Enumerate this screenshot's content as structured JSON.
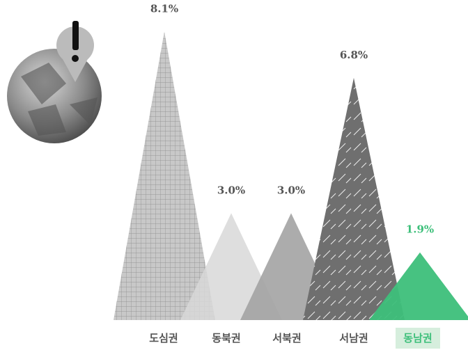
{
  "chart_data": {
    "type": "triangle-bar",
    "categories": [
      "도심권",
      "동북권",
      "서북권",
      "서남권",
      "동남권"
    ],
    "values": [
      8.1,
      3.0,
      3.0,
      6.8,
      1.9
    ],
    "value_labels": [
      "8.1%",
      "3.0%",
      "3.0%",
      "6.8%",
      "1.9%"
    ],
    "colors": [
      "#c8c8c8",
      "#d8d8d8",
      "#a3a3a3",
      "#6f6f6f",
      "#3dbf7a"
    ]
  }
}
